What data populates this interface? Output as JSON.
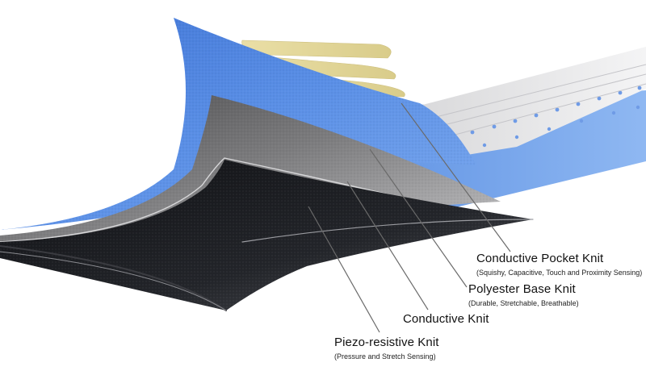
{
  "layers": [
    {
      "title": "Conductive Pocket Knit",
      "subtitle": "(Squishy, Capacitive, Touch and Proximity Sensing)"
    },
    {
      "title": "Polyester Base Knit",
      "subtitle": "(Durable, Stretchable, Breathable)"
    },
    {
      "title": "Conductive Knit",
      "subtitle": ""
    },
    {
      "title": "Piezo-resistive Knit",
      "subtitle": "(Pressure and Stretch Sensing)"
    }
  ],
  "colors": {
    "pocket_knit": "#dcdcdc",
    "base_knit": "#4f86e0",
    "conductive_knit": "#6e6e6e",
    "piezo_knit": "#1b1c20",
    "traces": "#e4d9a0"
  }
}
